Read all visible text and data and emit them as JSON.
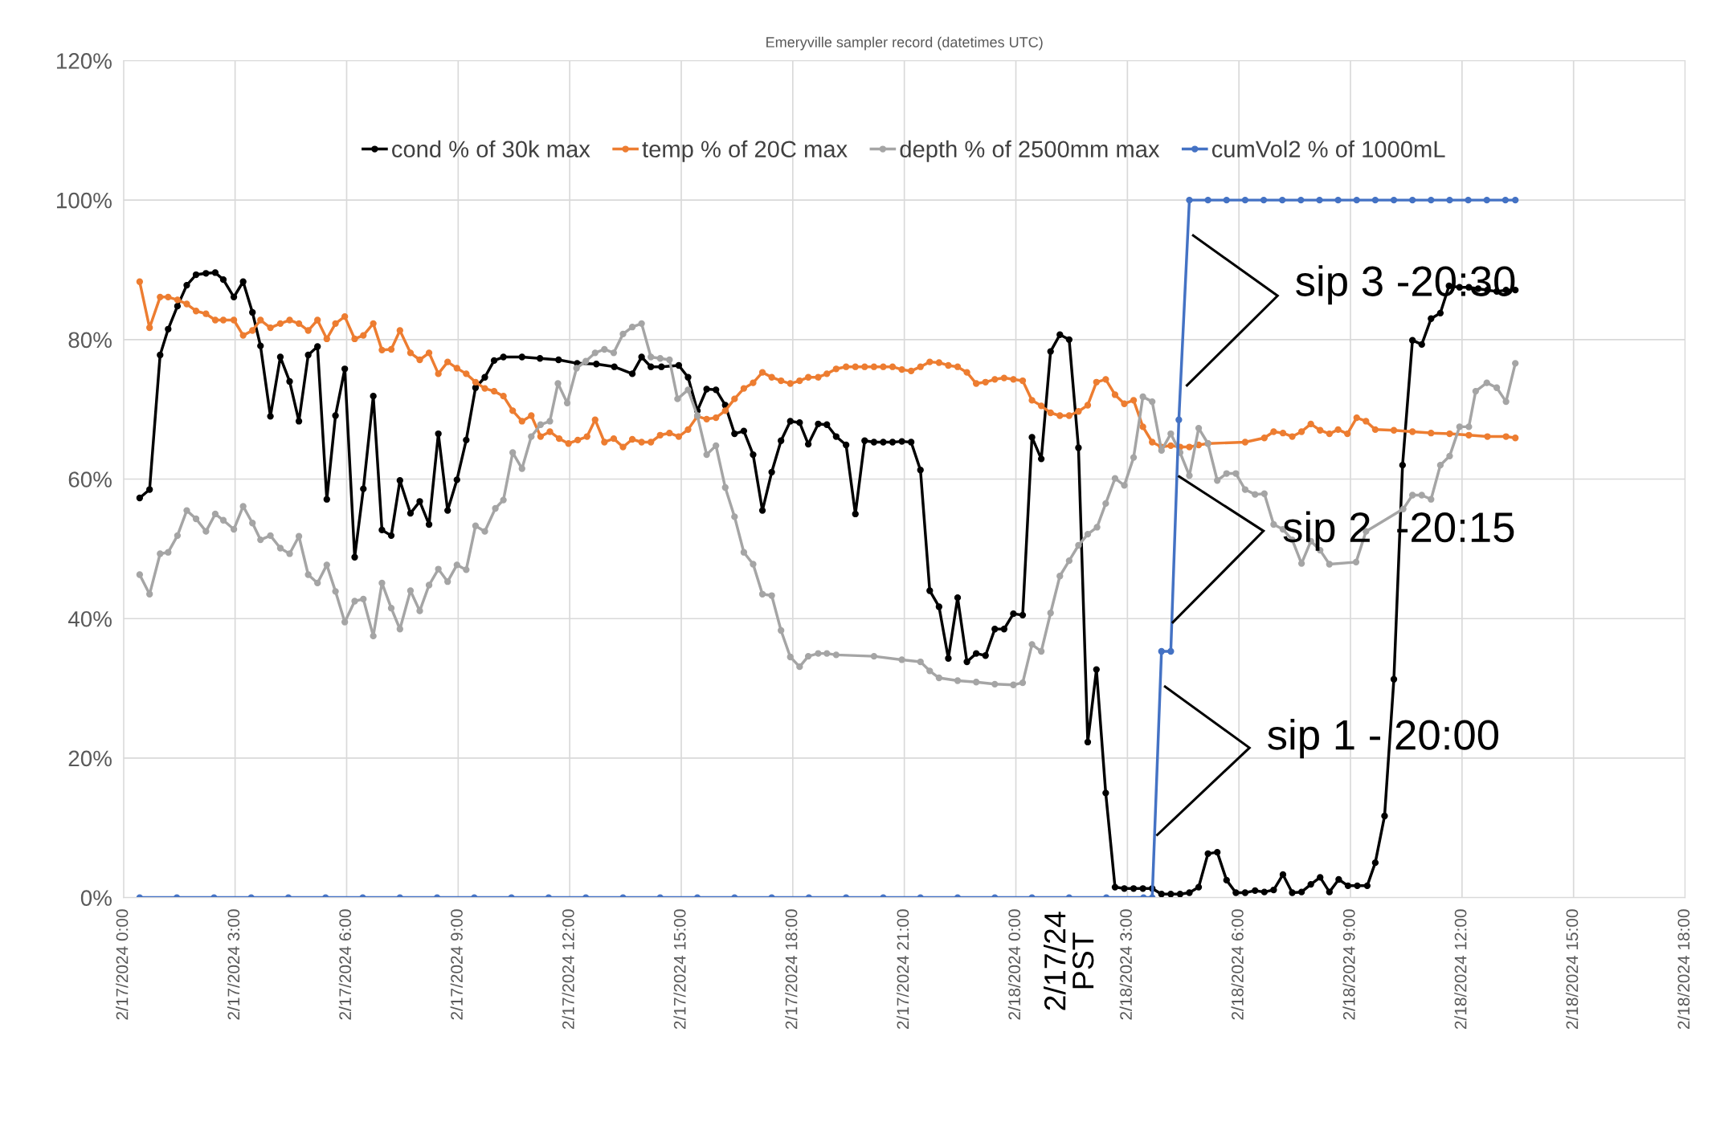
{
  "chart_data": {
    "type": "line",
    "title": "Emeryville sampler record (datetimes UTC)",
    "xlim": [
      "2024-02-17T00:00",
      "2024-02-18T18:00"
    ],
    "xticks": [
      {
        "value": "2024-02-17T00:00",
        "label": "2/17/2024 0:00"
      },
      {
        "value": "2024-02-17T03:00",
        "label": "2/17/2024 3:00"
      },
      {
        "value": "2024-02-17T06:00",
        "label": "2/17/2024 6:00"
      },
      {
        "value": "2024-02-17T09:00",
        "label": "2/17/2024 9:00"
      },
      {
        "value": "2024-02-17T12:00",
        "label": "2/17/2024 12:00"
      },
      {
        "value": "2024-02-17T15:00",
        "label": "2/17/2024 15:00"
      },
      {
        "value": "2024-02-17T18:00",
        "label": "2/17/2024 18:00"
      },
      {
        "value": "2024-02-17T21:00",
        "label": "2/17/2024 21:00"
      },
      {
        "value": "2024-02-18T00:00",
        "label": "2/18/2024 0:00"
      },
      {
        "value": "2024-02-18T03:00",
        "label": "2/18/2024 3:00"
      },
      {
        "value": "2024-02-18T06:00",
        "label": "2/18/2024 6:00"
      },
      {
        "value": "2024-02-18T09:00",
        "label": "2/18/2024 9:00"
      },
      {
        "value": "2024-02-18T12:00",
        "label": "2/18/2024 12:00"
      },
      {
        "value": "2024-02-18T15:00",
        "label": "2/18/2024 15:00"
      },
      {
        "value": "2024-02-18T18:00",
        "label": "2/18/2024 18:00"
      }
    ],
    "ylim": [
      0,
      120
    ],
    "yticks": [
      {
        "value": 0,
        "label": "0%"
      },
      {
        "value": 20,
        "label": "20%"
      },
      {
        "value": 40,
        "label": "40%"
      },
      {
        "value": 60,
        "label": "60%"
      },
      {
        "value": 80,
        "label": "80%"
      },
      {
        "value": 100,
        "label": "100%"
      },
      {
        "value": 120,
        "label": "120%"
      }
    ],
    "grid": true,
    "legend": "top",
    "marker": "circle",
    "line_style": "solid",
    "annotations": [
      "sip 1 - 20:00",
      "sip 2  -20:15",
      "sip 3 -20:30",
      "2/17/24\nPST"
    ],
    "series": [
      {
        "name": "cond % of 30k max",
        "color": "#000000",
        "x": [
          "2024-02-17T00:26",
          "2024-02-17T00:42",
          "2024-02-17T00:59",
          "2024-02-17T01:12",
          "2024-02-17T01:27",
          "2024-02-17T01:42",
          "2024-02-17T01:57",
          "2024-02-17T02:13",
          "2024-02-17T02:28",
          "2024-02-17T02:41",
          "2024-02-17T02:58",
          "2024-02-17T03:13",
          "2024-02-17T03:28",
          "2024-02-17T03:41",
          "2024-02-17T03:57",
          "2024-02-17T04:13",
          "2024-02-17T04:28",
          "2024-02-17T04:43",
          "2024-02-17T04:58",
          "2024-02-17T05:13",
          "2024-02-17T05:28",
          "2024-02-17T05:42",
          "2024-02-17T05:57",
          "2024-02-17T06:13",
          "2024-02-17T06:27",
          "2024-02-17T06:43",
          "2024-02-17T06:57",
          "2024-02-17T07:12",
          "2024-02-17T07:26",
          "2024-02-17T07:43",
          "2024-02-17T07:58",
          "2024-02-17T08:13",
          "2024-02-17T08:28",
          "2024-02-17T08:43",
          "2024-02-17T08:58",
          "2024-02-17T09:13",
          "2024-02-17T09:28",
          "2024-02-17T09:43",
          "2024-02-17T09:58",
          "2024-02-17T10:13",
          "2024-02-17T10:43",
          "2024-02-17T11:12",
          "2024-02-17T11:42",
          "2024-02-17T12:12",
          "2024-02-17T12:43",
          "2024-02-17T13:12",
          "2024-02-17T13:41",
          "2024-02-17T13:56",
          "2024-02-17T14:11",
          "2024-02-17T14:28",
          "2024-02-17T14:56",
          "2024-02-17T15:11",
          "2024-02-17T15:26",
          "2024-02-17T15:41",
          "2024-02-17T15:56",
          "2024-02-17T16:11",
          "2024-02-17T16:26",
          "2024-02-17T16:41",
          "2024-02-17T16:56",
          "2024-02-17T17:11",
          "2024-02-17T17:26",
          "2024-02-17T17:41",
          "2024-02-17T17:56",
          "2024-02-17T18:11",
          "2024-02-17T18:25",
          "2024-02-17T18:41",
          "2024-02-17T18:55",
          "2024-02-17T19:10",
          "2024-02-17T19:26",
          "2024-02-17T19:41",
          "2024-02-17T19:56",
          "2024-02-17T20:11",
          "2024-02-17T20:26",
          "2024-02-17T20:41",
          "2024-02-17T20:56",
          "2024-02-17T21:11",
          "2024-02-17T21:26",
          "2024-02-17T21:41",
          "2024-02-17T21:56",
          "2024-02-17T22:11",
          "2024-02-17T22:26",
          "2024-02-17T22:41",
          "2024-02-17T22:56",
          "2024-02-17T23:11",
          "2024-02-17T23:26",
          "2024-02-17T23:41",
          "2024-02-17T23:56",
          "2024-02-18T00:11",
          "2024-02-18T00:26",
          "2024-02-18T00:41",
          "2024-02-18T00:56",
          "2024-02-18T01:11",
          "2024-02-18T01:26",
          "2024-02-18T01:41",
          "2024-02-18T01:56",
          "2024-02-18T02:10",
          "2024-02-18T02:25",
          "2024-02-18T02:40",
          "2024-02-18T02:55",
          "2024-02-18T03:10",
          "2024-02-18T03:25",
          "2024-02-18T03:40",
          "2024-02-18T03:55",
          "2024-02-18T04:10",
          "2024-02-18T04:25",
          "2024-02-18T04:40",
          "2024-02-18T04:55",
          "2024-02-18T05:10",
          "2024-02-18T05:25",
          "2024-02-18T05:40",
          "2024-02-18T05:55",
          "2024-02-18T06:10",
          "2024-02-18T06:26",
          "2024-02-18T06:41",
          "2024-02-18T06:56",
          "2024-02-18T07:11",
          "2024-02-18T07:26",
          "2024-02-18T07:41",
          "2024-02-18T07:56",
          "2024-02-18T08:11",
          "2024-02-18T08:26",
          "2024-02-18T08:41",
          "2024-02-18T08:56",
          "2024-02-18T09:11",
          "2024-02-18T09:27",
          "2024-02-18T09:40",
          "2024-02-18T09:55",
          "2024-02-18T10:10",
          "2024-02-18T10:24",
          "2024-02-18T10:40",
          "2024-02-18T10:55",
          "2024-02-18T11:10",
          "2024-02-18T11:25",
          "2024-02-18T11:39",
          "2024-02-18T11:56",
          "2024-02-18T12:11",
          "2024-02-18T12:26",
          "2024-02-18T12:41",
          "2024-02-18T12:56",
          "2024-02-18T13:11",
          "2024-02-18T13:26"
        ],
        "values": [
          57.3,
          58.5,
          77.8,
          81.5,
          84.8,
          87.8,
          89.3,
          89.5,
          89.6,
          88.6,
          86.1,
          88.3,
          83.9,
          79.1,
          69.0,
          77.5,
          74.0,
          68.3,
          77.8,
          79.0,
          57.1,
          69.1,
          75.8,
          48.8,
          58.6,
          71.9,
          52.7,
          51.9,
          59.8,
          55.1,
          56.8,
          53.5,
          66.5,
          55.5,
          59.9,
          65.6,
          73.1,
          74.6,
          77.0,
          77.5,
          77.5,
          77.3,
          77.1,
          76.6,
          76.5,
          76.1,
          75.1,
          77.5,
          76.1,
          76.1,
          76.3,
          74.6,
          69.8,
          72.9,
          72.8,
          70.6,
          66.5,
          66.9,
          63.5,
          55.5,
          61.0,
          65.5,
          68.3,
          68.1,
          65.0,
          67.9,
          67.8,
          66.1,
          64.9,
          55.0,
          65.5,
          65.3,
          65.3,
          65.3,
          65.4,
          65.3,
          61.3,
          44.0,
          41.7,
          34.3,
          43.0,
          33.8,
          35.0,
          34.7,
          38.5,
          38.5,
          40.7,
          40.5,
          66.0,
          62.9,
          78.3,
          80.7,
          80.0,
          64.5,
          22.3,
          32.7,
          15.0,
          1.5,
          1.3,
          1.3,
          1.3,
          1.3,
          0.5,
          0.5,
          0.5,
          0.7,
          1.5,
          6.3,
          6.5,
          2.5,
          0.7,
          0.7,
          1.0,
          0.8,
          1.1,
          3.3,
          0.7,
          0.8,
          1.9,
          2.9,
          0.8,
          2.6,
          1.7,
          1.7,
          1.7,
          5.0,
          11.7,
          31.3,
          62.0,
          79.9,
          79.3,
          83.0,
          83.8,
          87.7,
          87.5,
          87.5,
          87.3,
          87.1,
          86.9,
          87.1,
          87.1
        ]
      },
      {
        "name": "temp % of 20C max",
        "color": "#ed7d31",
        "x": [
          "2024-02-17T00:26",
          "2024-02-17T00:42",
          "2024-02-17T00:59",
          "2024-02-17T01:12",
          "2024-02-17T01:27",
          "2024-02-17T01:42",
          "2024-02-17T01:57",
          "2024-02-17T02:13",
          "2024-02-17T02:28",
          "2024-02-17T02:41",
          "2024-02-17T02:58",
          "2024-02-17T03:13",
          "2024-02-17T03:28",
          "2024-02-17T03:41",
          "2024-02-17T03:57",
          "2024-02-17T04:13",
          "2024-02-17T04:28",
          "2024-02-17T04:43",
          "2024-02-17T04:58",
          "2024-02-17T05:13",
          "2024-02-17T05:28",
          "2024-02-17T05:42",
          "2024-02-17T05:57",
          "2024-02-17T06:13",
          "2024-02-17T06:27",
          "2024-02-17T06:43",
          "2024-02-17T06:57",
          "2024-02-17T07:12",
          "2024-02-17T07:26",
          "2024-02-17T07:43",
          "2024-02-17T07:58",
          "2024-02-17T08:13",
          "2024-02-17T08:28",
          "2024-02-17T08:43",
          "2024-02-17T08:58",
          "2024-02-17T09:13",
          "2024-02-17T09:28",
          "2024-02-17T09:43",
          "2024-02-17T09:58",
          "2024-02-17T10:13",
          "2024-02-17T10:28",
          "2024-02-17T10:43",
          "2024-02-17T10:58",
          "2024-02-17T11:13",
          "2024-02-17T11:28",
          "2024-02-17T11:43",
          "2024-02-17T11:58",
          "2024-02-17T12:13",
          "2024-02-17T12:28",
          "2024-02-17T12:41",
          "2024-02-17T12:56",
          "2024-02-17T13:11",
          "2024-02-17T13:26",
          "2024-02-17T13:41",
          "2024-02-17T13:56",
          "2024-02-17T14:11",
          "2024-02-17T14:26",
          "2024-02-17T14:41",
          "2024-02-17T14:56",
          "2024-02-17T15:11",
          "2024-02-17T15:26",
          "2024-02-17T15:41",
          "2024-02-17T15:56",
          "2024-02-17T16:11",
          "2024-02-17T16:26",
          "2024-02-17T16:41",
          "2024-02-17T16:56",
          "2024-02-17T17:11",
          "2024-02-17T17:26",
          "2024-02-17T17:41",
          "2024-02-17T17:56",
          "2024-02-17T18:11",
          "2024-02-17T18:25",
          "2024-02-17T18:41",
          "2024-02-17T18:55",
          "2024-02-17T19:10",
          "2024-02-17T19:26",
          "2024-02-17T19:41",
          "2024-02-17T19:56",
          "2024-02-17T20:11",
          "2024-02-17T20:26",
          "2024-02-17T20:41",
          "2024-02-17T20:56",
          "2024-02-17T21:11",
          "2024-02-17T21:26",
          "2024-02-17T21:41",
          "2024-02-17T21:56",
          "2024-02-17T22:11",
          "2024-02-17T22:26",
          "2024-02-17T22:41",
          "2024-02-17T22:56",
          "2024-02-17T23:11",
          "2024-02-17T23:26",
          "2024-02-17T23:41",
          "2024-02-17T23:56",
          "2024-02-18T00:11",
          "2024-02-18T00:26",
          "2024-02-18T00:41",
          "2024-02-18T00:56",
          "2024-02-18T01:11",
          "2024-02-18T01:26",
          "2024-02-18T01:41",
          "2024-02-18T01:56",
          "2024-02-18T02:10",
          "2024-02-18T02:25",
          "2024-02-18T02:40",
          "2024-02-18T02:55",
          "2024-02-18T03:10",
          "2024-02-18T03:25",
          "2024-02-18T03:40",
          "2024-02-18T03:55",
          "2024-02-18T04:10",
          "2024-02-18T04:25",
          "2024-02-18T04:40",
          "2024-02-18T04:55",
          "2024-02-18T05:10",
          "2024-02-18T06:10",
          "2024-02-18T06:41",
          "2024-02-18T06:56",
          "2024-02-18T07:11",
          "2024-02-18T07:26",
          "2024-02-18T07:41",
          "2024-02-18T07:56",
          "2024-02-18T08:11",
          "2024-02-18T08:26",
          "2024-02-18T08:40",
          "2024-02-18T08:55",
          "2024-02-18T09:10",
          "2024-02-18T09:25",
          "2024-02-18T09:40",
          "2024-02-18T10:10",
          "2024-02-18T10:40",
          "2024-02-18T11:10",
          "2024-02-18T11:40",
          "2024-02-18T12:11",
          "2024-02-18T12:41",
          "2024-02-18T13:11",
          "2024-02-18T13:26"
        ],
        "values": [
          88.3,
          81.7,
          86.1,
          86.1,
          85.7,
          85.1,
          84.1,
          83.7,
          82.8,
          82.8,
          82.8,
          80.6,
          81.3,
          82.8,
          81.7,
          82.3,
          82.8,
          82.3,
          81.3,
          82.8,
          80.1,
          82.3,
          83.3,
          80.1,
          80.6,
          82.3,
          78.5,
          78.6,
          81.3,
          78.1,
          77.1,
          78.1,
          75.1,
          76.8,
          75.9,
          75.1,
          73.9,
          73.0,
          72.6,
          71.9,
          69.8,
          68.3,
          69.1,
          66.1,
          66.8,
          65.8,
          65.1,
          65.6,
          66.1,
          68.5,
          65.3,
          65.8,
          64.6,
          65.7,
          65.3,
          65.3,
          66.3,
          66.6,
          66.1,
          67.1,
          69.0,
          68.6,
          68.8,
          69.8,
          71.5,
          73.0,
          73.8,
          75.3,
          74.6,
          74.1,
          73.7,
          74.1,
          74.6,
          74.6,
          75.1,
          75.8,
          76.1,
          76.1,
          76.1,
          76.1,
          76.1,
          76.1,
          75.7,
          75.5,
          76.1,
          76.8,
          76.7,
          76.3,
          76.1,
          75.3,
          73.7,
          73.9,
          74.3,
          74.5,
          74.3,
          74.1,
          71.3,
          70.5,
          69.5,
          69.1,
          69.1,
          69.7,
          70.6,
          73.9,
          74.3,
          72.1,
          70.8,
          71.3,
          67.5,
          65.3,
          64.6,
          64.8,
          64.6,
          64.6,
          64.9,
          65.1,
          65.3,
          65.9,
          66.8,
          66.6,
          66.1,
          66.8,
          67.9,
          67.0,
          66.5,
          67.1,
          66.5,
          68.8,
          68.3,
          67.1,
          67.0,
          66.8,
          66.6,
          66.5,
          66.3,
          66.1,
          66.1,
          65.9
        ]
      },
      {
        "name": "depth % of 2500mm max",
        "color": "#a5a5a5",
        "x": [
          "2024-02-17T00:26",
          "2024-02-17T00:42",
          "2024-02-17T00:59",
          "2024-02-17T01:12",
          "2024-02-17T01:27",
          "2024-02-17T01:42",
          "2024-02-17T01:57",
          "2024-02-17T02:13",
          "2024-02-17T02:28",
          "2024-02-17T02:41",
          "2024-02-17T02:58",
          "2024-02-17T03:13",
          "2024-02-17T03:28",
          "2024-02-17T03:41",
          "2024-02-17T03:57",
          "2024-02-17T04:13",
          "2024-02-17T04:28",
          "2024-02-17T04:43",
          "2024-02-17T04:58",
          "2024-02-17T05:13",
          "2024-02-17T05:28",
          "2024-02-17T05:42",
          "2024-02-17T05:57",
          "2024-02-17T06:13",
          "2024-02-17T06:27",
          "2024-02-17T06:43",
          "2024-02-17T06:57",
          "2024-02-17T07:12",
          "2024-02-17T07:26",
          "2024-02-17T07:43",
          "2024-02-17T07:58",
          "2024-02-17T08:13",
          "2024-02-17T08:28",
          "2024-02-17T08:43",
          "2024-02-17T08:58",
          "2024-02-17T09:13",
          "2024-02-17T09:28",
          "2024-02-17T09:43",
          "2024-02-17T10:00",
          "2024-02-17T10:13",
          "2024-02-17T10:28",
          "2024-02-17T10:43",
          "2024-02-17T10:58",
          "2024-02-17T11:13",
          "2024-02-17T11:28",
          "2024-02-17T11:41",
          "2024-02-17T11:56",
          "2024-02-17T12:11",
          "2024-02-17T12:26",
          "2024-02-17T12:41",
          "2024-02-17T12:56",
          "2024-02-17T13:11",
          "2024-02-17T13:26",
          "2024-02-17T13:41",
          "2024-02-17T13:56",
          "2024-02-17T14:11",
          "2024-02-17T14:26",
          "2024-02-17T14:41",
          "2024-02-17T14:54",
          "2024-02-17T15:11",
          "2024-02-17T15:26",
          "2024-02-17T15:41",
          "2024-02-17T15:56",
          "2024-02-17T16:11",
          "2024-02-17T16:26",
          "2024-02-17T16:41",
          "2024-02-17T16:56",
          "2024-02-17T17:11",
          "2024-02-17T17:26",
          "2024-02-17T17:41",
          "2024-02-17T17:56",
          "2024-02-17T18:11",
          "2024-02-17T18:25",
          "2024-02-17T18:41",
          "2024-02-17T18:55",
          "2024-02-17T19:10",
          "2024-02-17T20:11",
          "2024-02-17T20:56",
          "2024-02-17T21:26",
          "2024-02-17T21:41",
          "2024-02-17T21:56",
          "2024-02-17T22:26",
          "2024-02-17T22:56",
          "2024-02-17T23:26",
          "2024-02-17T23:56",
          "2024-02-18T00:11",
          "2024-02-18T00:26",
          "2024-02-18T00:41",
          "2024-02-18T00:56",
          "2024-02-18T01:11",
          "2024-02-18T01:26",
          "2024-02-18T01:41",
          "2024-02-18T01:56",
          "2024-02-18T02:11",
          "2024-02-18T02:25",
          "2024-02-18T02:40",
          "2024-02-18T02:55",
          "2024-02-18T03:10",
          "2024-02-18T03:25",
          "2024-02-18T03:40",
          "2024-02-18T03:55",
          "2024-02-18T04:10",
          "2024-02-18T04:25",
          "2024-02-18T04:40",
          "2024-02-18T04:55",
          "2024-02-18T05:10",
          "2024-02-18T05:25",
          "2024-02-18T05:40",
          "2024-02-18T05:55",
          "2024-02-18T06:10",
          "2024-02-18T06:26",
          "2024-02-18T06:41",
          "2024-02-18T06:56",
          "2024-02-18T07:11",
          "2024-02-18T07:26",
          "2024-02-18T07:41",
          "2024-02-18T07:56",
          "2024-02-18T08:11",
          "2024-02-18T08:26",
          "2024-02-18T09:09",
          "2024-02-18T09:25",
          "2024-02-18T10:25",
          "2024-02-18T10:40",
          "2024-02-18T10:55",
          "2024-02-18T11:10",
          "2024-02-18T11:25",
          "2024-02-18T11:40",
          "2024-02-18T11:56",
          "2024-02-18T12:11",
          "2024-02-18T12:22",
          "2024-02-18T12:40",
          "2024-02-18T12:56",
          "2024-02-18T13:11",
          "2024-02-18T13:26"
        ],
        "values": [
          46.3,
          43.5,
          49.3,
          49.5,
          51.9,
          55.5,
          54.3,
          52.5,
          55.0,
          54.1,
          52.8,
          56.1,
          53.7,
          51.3,
          51.9,
          50.1,
          49.3,
          51.8,
          46.3,
          45.1,
          47.7,
          43.9,
          39.5,
          42.5,
          42.8,
          37.5,
          45.1,
          41.5,
          38.5,
          44.0,
          41.1,
          44.8,
          47.1,
          45.3,
          47.7,
          47.0,
          53.3,
          52.5,
          55.8,
          57.0,
          63.8,
          61.5,
          66.1,
          67.8,
          68.3,
          73.7,
          70.9,
          75.9,
          76.9,
          78.1,
          78.6,
          78.1,
          80.8,
          81.8,
          82.3,
          77.5,
          77.3,
          77.1,
          71.5,
          72.8,
          69.1,
          63.5,
          64.8,
          58.8,
          54.6,
          49.5,
          47.8,
          43.5,
          43.3,
          38.3,
          34.5,
          33.1,
          34.6,
          35.0,
          35.0,
          34.8,
          34.6,
          34.1,
          33.8,
          32.5,
          31.5,
          31.1,
          30.9,
          30.6,
          30.5,
          30.8,
          36.3,
          35.3,
          40.8,
          46.1,
          48.3,
          50.5,
          52.1,
          53.1,
          56.5,
          60.1,
          59.1,
          63.1,
          71.8,
          71.1,
          64.1,
          66.5,
          63.8,
          60.5,
          67.3,
          65.1,
          59.8,
          60.8,
          60.8,
          58.5,
          57.8,
          57.9,
          53.5,
          52.8,
          51.3,
          47.9,
          51.1,
          49.8,
          47.8,
          48.1,
          52.5,
          55.7,
          57.7,
          57.7,
          57.1,
          62.0,
          63.3,
          67.5,
          67.5,
          72.6,
          73.8,
          73.1,
          71.1,
          76.6
        ]
      },
      {
        "name": "cumVol2 % of 1000mL",
        "color": "#4472c4",
        "x": [
          "2024-02-17T00:26",
          "2024-02-17T01:26",
          "2024-02-17T02:26",
          "2024-02-17T03:26",
          "2024-02-17T04:26",
          "2024-02-17T05:26",
          "2024-02-17T06:26",
          "2024-02-17T07:26",
          "2024-02-17T08:26",
          "2024-02-17T09:26",
          "2024-02-17T10:26",
          "2024-02-17T11:26",
          "2024-02-17T12:26",
          "2024-02-17T13:26",
          "2024-02-17T14:26",
          "2024-02-17T15:26",
          "2024-02-17T16:26",
          "2024-02-17T17:26",
          "2024-02-17T18:26",
          "2024-02-17T19:26",
          "2024-02-17T20:26",
          "2024-02-17T21:26",
          "2024-02-17T22:26",
          "2024-02-17T23:26",
          "2024-02-18T00:26",
          "2024-02-18T01:26",
          "2024-02-18T02:26",
          "2024-02-18T03:26",
          "2024-02-18T03:40",
          "2024-02-18T03:55",
          "2024-02-18T04:10",
          "2024-02-18T04:23",
          "2024-02-18T04:40",
          "2024-02-18T05:10",
          "2024-02-18T05:40",
          "2024-02-18T06:10",
          "2024-02-18T06:40",
          "2024-02-18T07:10",
          "2024-02-18T07:40",
          "2024-02-18T08:10",
          "2024-02-18T08:40",
          "2024-02-18T09:10",
          "2024-02-18T09:40",
          "2024-02-18T10:10",
          "2024-02-18T10:40",
          "2024-02-18T11:10",
          "2024-02-18T11:40",
          "2024-02-18T12:10",
          "2024-02-18T12:40",
          "2024-02-18T13:10",
          "2024-02-18T13:26"
        ],
        "values": [
          0,
          0,
          0,
          0,
          0,
          0,
          0,
          0,
          0,
          0,
          0,
          0,
          0,
          0,
          0,
          0,
          0,
          0,
          0,
          0,
          0,
          0,
          0,
          0,
          0,
          0,
          0,
          0,
          0,
          35.3,
          35.3,
          68.5,
          100,
          100,
          100,
          100,
          100,
          100,
          100,
          100,
          100,
          100,
          100,
          100,
          100,
          100,
          100,
          100,
          100,
          100,
          100
        ]
      }
    ]
  }
}
